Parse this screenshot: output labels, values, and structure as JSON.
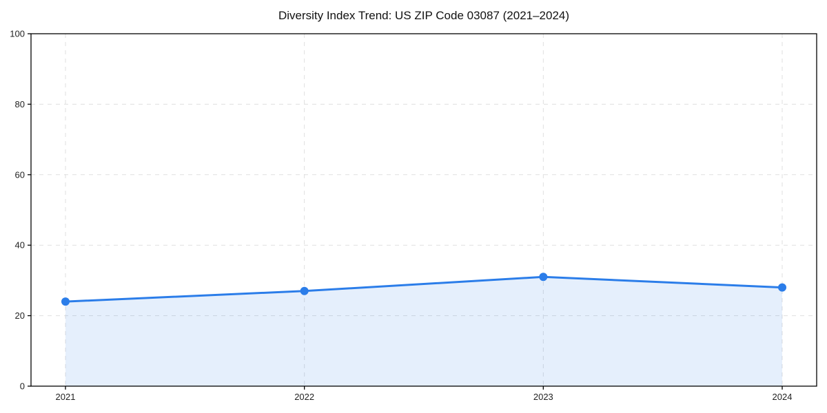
{
  "chart_data": {
    "type": "area",
    "title": "Diversity Index Trend: US ZIP Code 03087 (2021–2024)",
    "categories": [
      "2021",
      "2022",
      "2023",
      "2024"
    ],
    "values": [
      24,
      27,
      31,
      28
    ],
    "xlabel": "",
    "ylabel": "",
    "ylim": [
      0,
      100
    ],
    "yticks": [
      0,
      20,
      40,
      60,
      80,
      100
    ],
    "grid": "dashed light gray, horizontal and vertical",
    "legend": "none",
    "marker": "circle",
    "colors": {
      "line": "#2b7de9",
      "marker": "#2b7de9",
      "fill": "rgba(43, 125, 233, 0.12)",
      "grid": "#dfdfdf",
      "axis": "#000000",
      "title_text": "#111111",
      "tick_text": "#222222",
      "background": "#ffffff"
    }
  }
}
